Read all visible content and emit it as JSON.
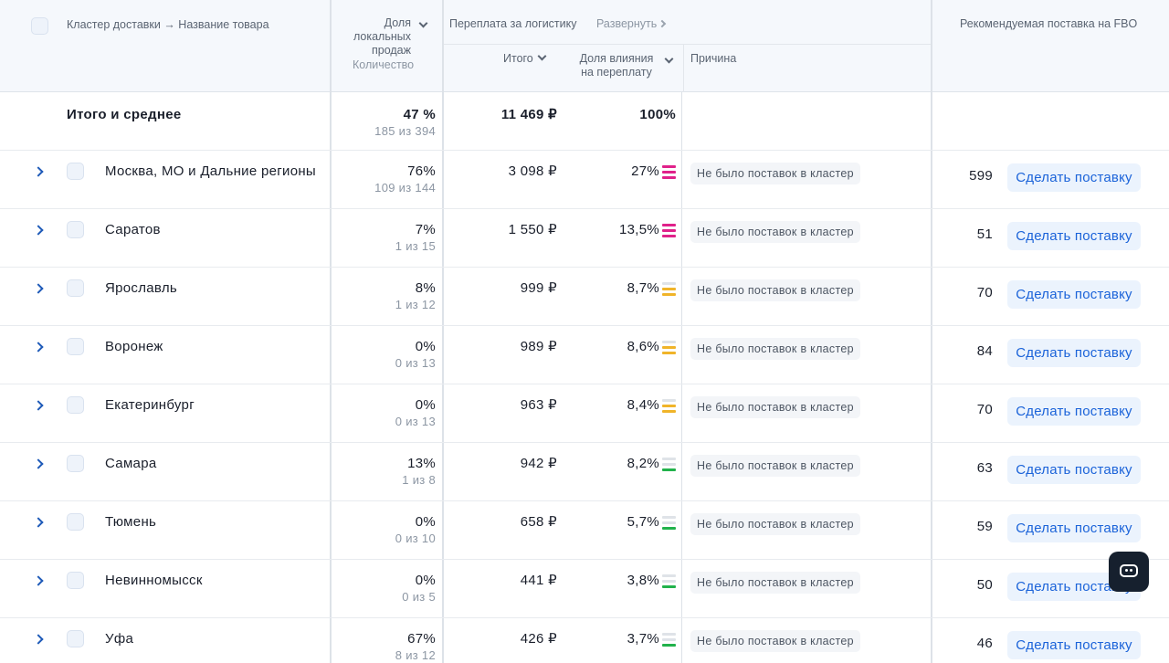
{
  "header": {
    "cluster_name": "Кластер доставки → Название товара",
    "local_share_l1": "Доля",
    "local_share_l2": "локальных",
    "local_share_l3": "продаж",
    "local_share_sub": "Количество",
    "overpay_title": "Переплата за логистику",
    "expand_label": "Развернуть",
    "total_col": "Итого",
    "impact_l1": "Доля влияния",
    "impact_l2": "на переплату",
    "reason_col": "Причина",
    "fbo_title": "Рекомендуемая поставка на FBO"
  },
  "total_row": {
    "label": "Итого и среднее",
    "share": "47 %",
    "share_sub": "185 из 394",
    "overpay": "11 469 ₽",
    "impact": "100%"
  },
  "rows": [
    {
      "name": "Москва, МО и Дальние регионы",
      "share": "76%",
      "share_sub": "109 из 144",
      "overpay": "3 098 ₽",
      "impact": "27%",
      "level": "high",
      "reason": "Не было поставок в кластер",
      "qty": "599",
      "action": "Сделать поставку"
    },
    {
      "name": "Саратов",
      "share": "7%",
      "share_sub": "1 из 15",
      "overpay": "1 550 ₽",
      "impact": "13,5%",
      "level": "high",
      "reason": "Не было поставок в кластер",
      "qty": "51",
      "action": "Сделать поставку"
    },
    {
      "name": "Ярославль",
      "share": "8%",
      "share_sub": "1 из 12",
      "overpay": "999 ₽",
      "impact": "8,7%",
      "level": "medium",
      "reason": "Не было поставок в кластер",
      "qty": "70",
      "action": "Сделать поставку"
    },
    {
      "name": "Воронеж",
      "share": "0%",
      "share_sub": "0 из 13",
      "overpay": "989 ₽",
      "impact": "8,6%",
      "level": "medium",
      "reason": "Не было поставок в кластер",
      "qty": "84",
      "action": "Сделать поставку"
    },
    {
      "name": "Екатеринбург",
      "share": "0%",
      "share_sub": "0 из 13",
      "overpay": "963 ₽",
      "impact": "8,4%",
      "level": "medium",
      "reason": "Не было поставок в кластер",
      "qty": "70",
      "action": "Сделать поставку"
    },
    {
      "name": "Самара",
      "share": "13%",
      "share_sub": "1 из 8",
      "overpay": "942 ₽",
      "impact": "8,2%",
      "level": "low",
      "reason": "Не было поставок в кластер",
      "qty": "63",
      "action": "Сделать поставку"
    },
    {
      "name": "Тюмень",
      "share": "0%",
      "share_sub": "0 из 10",
      "overpay": "658 ₽",
      "impact": "5,7%",
      "level": "low",
      "reason": "Не было поставок в кластер",
      "qty": "59",
      "action": "Сделать поставку"
    },
    {
      "name": "Невинномысск",
      "share": "0%",
      "share_sub": "0 из 5",
      "overpay": "441 ₽",
      "impact": "3,8%",
      "level": "low",
      "reason": "Не было поставок в кластер",
      "qty": "50",
      "action": "Сделать поставку"
    },
    {
      "name": "Уфа",
      "share": "67%",
      "share_sub": "8 из 12",
      "overpay": "426 ₽",
      "impact": "3,7%",
      "level": "low",
      "reason": "Не было поставок в кластер",
      "qty": "46",
      "action": "Сделать поставку"
    }
  ],
  "colors": {
    "level_high": "#e0218a",
    "level_medium": "#f0b429",
    "level_low": "#21b24b",
    "level_empty": "#dfe3e8",
    "accent": "#1b63d9"
  },
  "icons": {
    "expand": "chevron-right-icon",
    "chat": "chat-icon"
  }
}
